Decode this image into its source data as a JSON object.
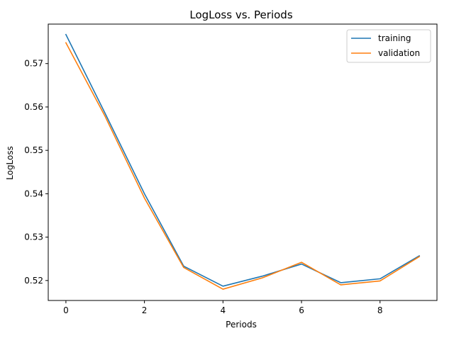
{
  "chart_data": {
    "type": "line",
    "title": "LogLoss vs. Periods",
    "xlabel": "Periods",
    "ylabel": "LogLoss",
    "xlim": [
      -0.45,
      9.45
    ],
    "ylim": [
      0.5154,
      0.5791
    ],
    "x": [
      0,
      1,
      2,
      3,
      4,
      5,
      6,
      7,
      8,
      9
    ],
    "x_ticks": [
      0,
      2,
      4,
      6,
      8
    ],
    "y_ticks": [
      0.52,
      0.53,
      0.54,
      0.55,
      0.56,
      0.57
    ],
    "grid": false,
    "legend_position": "top-right",
    "series": [
      {
        "name": "training",
        "color": "#1f77b4",
        "values": [
          0.5767,
          0.5585,
          0.54,
          0.5233,
          0.5187,
          0.521,
          0.5238,
          0.5195,
          0.5204,
          0.5257
        ]
      },
      {
        "name": "validation",
        "color": "#ff7f0e",
        "values": [
          0.5748,
          0.5578,
          0.539,
          0.523,
          0.518,
          0.5206,
          0.5242,
          0.519,
          0.5199,
          0.5255
        ]
      }
    ]
  }
}
